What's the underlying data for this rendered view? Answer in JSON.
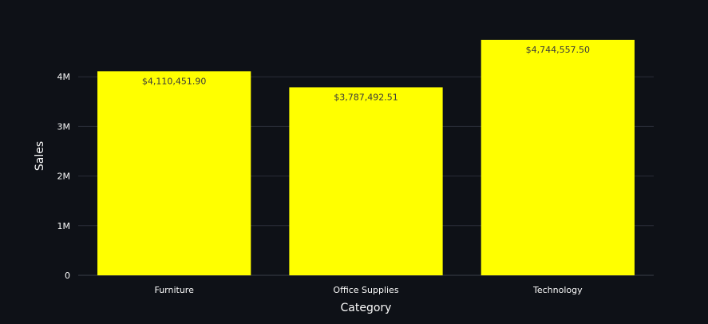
{
  "chart_data": {
    "type": "bar",
    "categories": [
      "Furniture",
      "Office Supplies",
      "Technology"
    ],
    "values": [
      4110451.9,
      3787492.51,
      4744557.5
    ],
    "data_labels": [
      "$4,110,451.90",
      "$3,787,492.51",
      "$4,744,557.50"
    ],
    "xlabel": "Category",
    "ylabel": "Sales",
    "ylim": [
      0,
      5000000
    ],
    "yticks": [
      0,
      1000000,
      2000000,
      3000000,
      4000000
    ],
    "ytick_labels": [
      "0",
      "1M",
      "2M",
      "3M",
      "4M"
    ],
    "grid": true,
    "colors": {
      "background": "#0e1117",
      "bar": "#ffff00",
      "grid": "#2a2e38",
      "text": "#fafafa",
      "data_label": "#3a3a3a"
    }
  }
}
